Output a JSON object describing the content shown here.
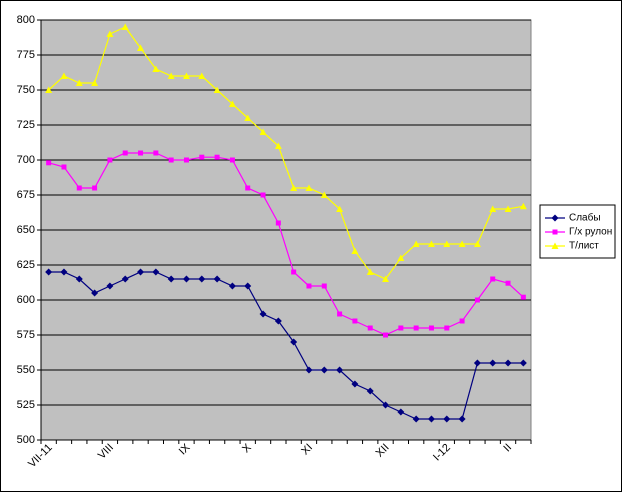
{
  "chart_data": {
    "type": "line",
    "categories": [
      "VII-11",
      null,
      null,
      null,
      "VIII",
      null,
      null,
      null,
      null,
      "IX",
      null,
      null,
      null,
      "X",
      null,
      null,
      null,
      "XI",
      null,
      null,
      null,
      null,
      "XII",
      null,
      null,
      null,
      "I-12",
      null,
      null,
      null,
      "II",
      null
    ],
    "series": [
      {
        "name": "Слабы",
        "color": "#000080",
        "marker": "diamond",
        "values": [
          620,
          620,
          615,
          605,
          610,
          615,
          620,
          620,
          615,
          615,
          615,
          615,
          610,
          610,
          590,
          585,
          570,
          550,
          550,
          550,
          540,
          535,
          525,
          520,
          515,
          515,
          515,
          515,
          555,
          555,
          555,
          555
        ]
      },
      {
        "name": "Г/х рулон",
        "color": "#ff00ff",
        "marker": "square",
        "values": [
          698,
          695,
          680,
          680,
          700,
          705,
          705,
          705,
          700,
          700,
          702,
          702,
          700,
          680,
          675,
          655,
          620,
          610,
          610,
          590,
          585,
          580,
          575,
          580,
          580,
          580,
          580,
          585,
          600,
          615,
          612,
          602
        ]
      },
      {
        "name": "Т/лист",
        "color": "#ffff00",
        "marker": "triangle",
        "values": [
          750,
          760,
          755,
          755,
          790,
          795,
          780,
          765,
          760,
          760,
          760,
          750,
          740,
          730,
          720,
          710,
          680,
          680,
          675,
          665,
          635,
          620,
          615,
          630,
          640,
          640,
          640,
          640,
          640,
          665,
          665,
          667
        ]
      }
    ],
    "ylim": [
      500,
      800
    ],
    "yticks": [
      500,
      525,
      550,
      575,
      600,
      625,
      650,
      675,
      700,
      725,
      750,
      775,
      800
    ],
    "grid": true,
    "legend": "right"
  }
}
